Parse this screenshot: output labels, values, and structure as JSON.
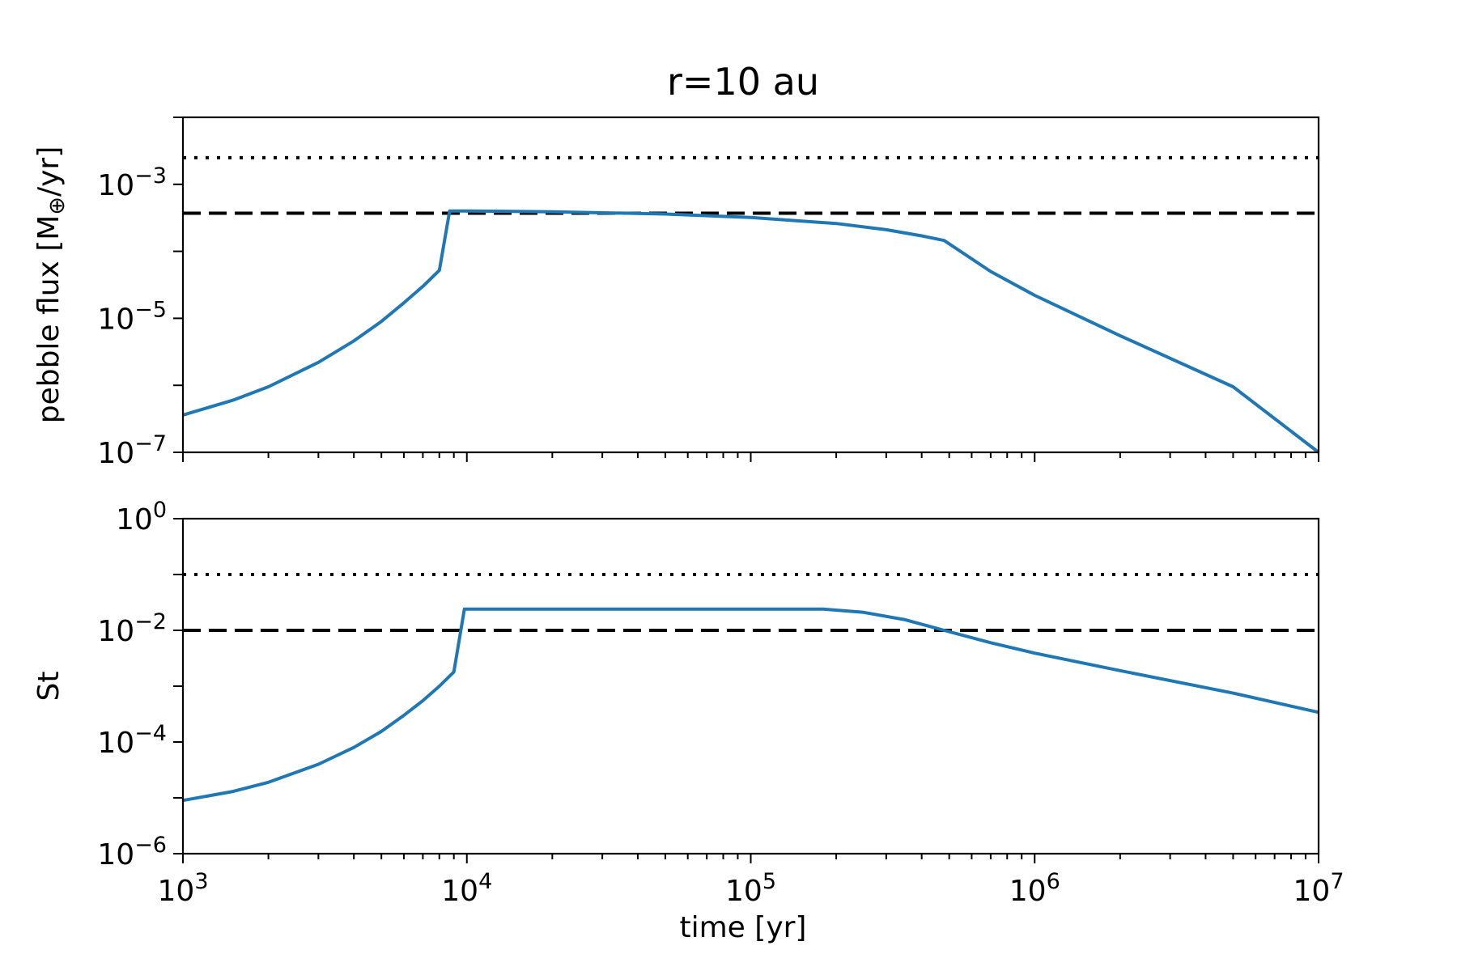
{
  "chart_data": {
    "title": "r=10 au",
    "xlabel": "time [yr]",
    "x_scale": "log",
    "xlim": [
      1000,
      10000000
    ],
    "x_ticks": [
      {
        "value": 1000,
        "base": "10",
        "exp": "3"
      },
      {
        "value": 10000,
        "base": "10",
        "exp": "4"
      },
      {
        "value": 100000,
        "base": "10",
        "exp": "5"
      },
      {
        "value": 1000000,
        "base": "10",
        "exp": "6"
      },
      {
        "value": 10000000,
        "base": "10",
        "exp": "7"
      }
    ],
    "line_color": "#1f77b4",
    "ref_color": "#000000",
    "panels": [
      {
        "type": "line",
        "ylabel_main": "pebble flux [M",
        "ylabel_sub": "⊕",
        "ylabel_end": "/yr]",
        "y_scale": "log",
        "ylim": [
          1e-07,
          0.01
        ],
        "y_ticks": [
          {
            "value": 1e-07,
            "base": "10",
            "exp": "−7"
          },
          {
            "value": 1e-05,
            "base": "10",
            "exp": "−5"
          },
          {
            "value": 0.001,
            "base": "10",
            "exp": "−3"
          }
        ],
        "hlines": [
          {
            "style": "dotted",
            "y": 0.0025
          },
          {
            "style": "dashed",
            "y": 0.00037
          }
        ],
        "series": [
          {
            "x": [
              1000,
              1500,
              2000,
              3000,
              4000,
              5000,
              6000,
              7000,
              8000,
              8700,
              10000,
              20000,
              50000,
              100000,
              200000,
              300000,
              400000,
              480000,
              700000,
              1000000,
              2000000,
              5000000,
              10000000
            ],
            "y": [
              3.6e-07,
              6e-07,
              9.5e-07,
              2.2e-06,
              4.6e-06,
              9e-06,
              1.7e-05,
              3e-05,
              5.2e-05,
              0.0004,
              0.0004,
              0.00039,
              0.00036,
              0.00032,
              0.00026,
              0.00021,
              0.00017,
              0.000145,
              5e-05,
              2.2e-05,
              5.5e-06,
              9.5e-07,
              1e-07
            ]
          }
        ]
      },
      {
        "type": "line",
        "ylabel_main": "St",
        "ylabel_sub": "",
        "ylabel_end": "",
        "y_scale": "log",
        "ylim": [
          1e-06,
          1
        ],
        "y_ticks": [
          {
            "value": 1e-06,
            "base": "10",
            "exp": "−6"
          },
          {
            "value": 0.0001,
            "base": "10",
            "exp": "−4"
          },
          {
            "value": 0.01,
            "base": "10",
            "exp": "−2"
          },
          {
            "value": 1,
            "base": "10",
            "exp": "0"
          }
        ],
        "hlines": [
          {
            "style": "dotted",
            "y": 0.1
          },
          {
            "style": "dashed",
            "y": 0.01
          }
        ],
        "series": [
          {
            "x": [
              1000,
              1500,
              2000,
              3000,
              4000,
              5000,
              6000,
              7000,
              8000,
              9000,
              9800,
              10000,
              50000,
              100000,
              180000,
              250000,
              350000,
              480000,
              700000,
              1000000,
              2000000,
              5000000,
              10000000
            ],
            "y": [
              9e-06,
              1.3e-05,
              1.9e-05,
              4e-05,
              8e-05,
              0.000155,
              0.0003,
              0.00055,
              0.001,
              0.0018,
              0.024,
              0.024,
              0.024,
              0.024,
              0.024,
              0.021,
              0.0155,
              0.01,
              0.006,
              0.0039,
              0.0019,
              0.00075,
              0.00034
            ]
          }
        ]
      }
    ]
  }
}
